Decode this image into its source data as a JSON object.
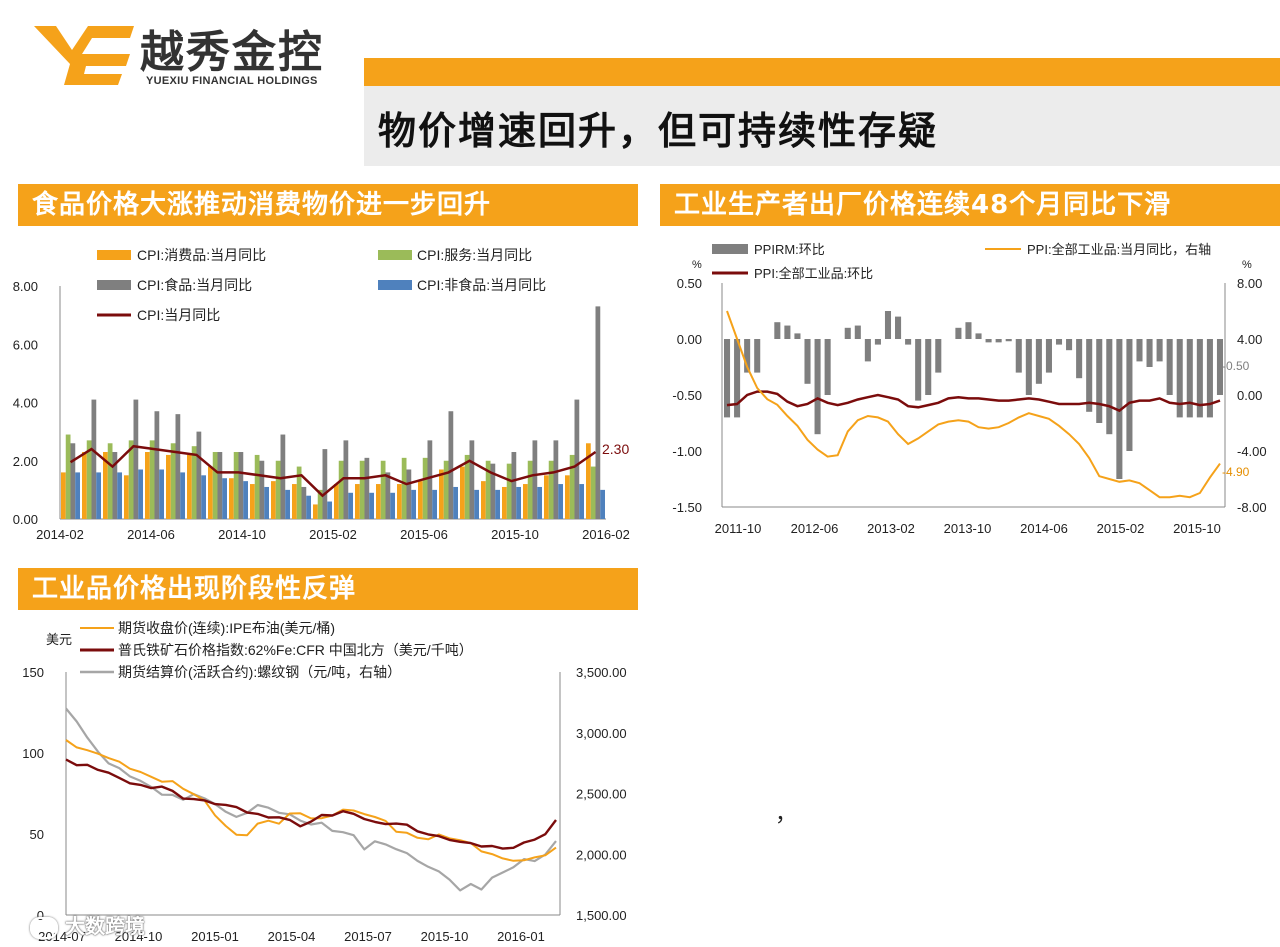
{
  "logo": {
    "cn": "越秀金控",
    "en": "YUEXIU FINANCIAL HOLDINGS"
  },
  "main_title": "物价增速回升，但可持续性存疑",
  "sections": {
    "cpi": "食品价格大涨推动消费物价进一步回升",
    "ppi": "工业生产者出厂价格连续48个月同比下滑",
    "commodity": "工业品价格出现阶段性反弹"
  },
  "stray_mark": "，",
  "watermark": "大数跨境",
  "colors": {
    "orange": "#f5a21a",
    "green": "#9bbb59",
    "gray": "#7f7f7f",
    "blue": "#4f81bd",
    "darkred": "#7b0c0c",
    "lightgray": "#a6a6a6"
  },
  "chart_data": [
    {
      "id": "cpi",
      "type": "bar",
      "legend": [
        "CPI:消费品:当月同比",
        "CPI:服务:当月同比",
        "CPI:食品:当月同比",
        "CPI:非食品:当月同比",
        "CPI:当月同比"
      ],
      "x_ticks": [
        "2014-02",
        "2014-06",
        "2014-10",
        "2015-02",
        "2015-06",
        "2015-10",
        "2016-02"
      ],
      "y_ticks": [
        "8.00",
        "6.00",
        "4.00",
        "2.00",
        "0.00"
      ],
      "ylim": [
        0,
        8
      ],
      "end_label": "2.30",
      "series": [
        {
          "name": "CPI:消费品:当月同比",
          "values": [
            1.6,
            2.3,
            2.3,
            1.5,
            2.3,
            2.2,
            2.2,
            1.8,
            1.4,
            1.2,
            1.3,
            1.2,
            0.5,
            1.2,
            1.2,
            1.2,
            1.2,
            1.3,
            1.7,
            1.8,
            1.3,
            1.1,
            1.2,
            1.5,
            1.5,
            2.6
          ]
        },
        {
          "name": "CPI:服务:当月同比",
          "values": [
            2.9,
            2.7,
            2.6,
            2.7,
            2.7,
            2.6,
            2.5,
            2.3,
            2.3,
            2.2,
            2.0,
            1.8,
            1.0,
            2.0,
            2.0,
            2.0,
            2.1,
            2.1,
            2.0,
            2.2,
            2.0,
            1.9,
            2.0,
            2.0,
            2.2,
            1.8
          ]
        },
        {
          "name": "CPI:食品:当月同比",
          "values": [
            2.6,
            4.1,
            2.3,
            4.1,
            3.7,
            3.6,
            3.0,
            2.3,
            2.3,
            2.0,
            2.9,
            1.1,
            2.4,
            2.7,
            2.1,
            1.6,
            1.7,
            2.7,
            3.7,
            2.7,
            1.9,
            2.3,
            2.7,
            2.7,
            4.1,
            7.3
          ]
        },
        {
          "name": "CPI:非食品:当月同比",
          "values": [
            1.6,
            1.6,
            1.6,
            1.7,
            1.7,
            1.6,
            1.5,
            1.4,
            1.3,
            1.1,
            1.0,
            0.8,
            0.6,
            0.9,
            0.9,
            0.9,
            1.0,
            1.0,
            1.1,
            1.0,
            1.0,
            1.1,
            1.1,
            1.2,
            1.2,
            1.0
          ]
        },
        {
          "name": "CPI:当月同比",
          "values": [
            1.95,
            2.4,
            1.8,
            2.5,
            2.4,
            2.3,
            2.2,
            1.6,
            1.6,
            1.5,
            1.4,
            1.5,
            0.8,
            1.4,
            1.4,
            1.5,
            1.2,
            1.4,
            1.6,
            2.0,
            1.6,
            1.3,
            1.5,
            1.6,
            1.8,
            2.3
          ]
        }
      ]
    },
    {
      "id": "ppi",
      "type": "bar+line",
      "legend": [
        "PPIRM:环比",
        "PPI:全部工业品:环比",
        "PPI:全部工业品:当月同比，右轴"
      ],
      "unit_left": "%",
      "unit_right": "%",
      "x_ticks": [
        "2011-10",
        "2012-06",
        "2013-02",
        "2013-10",
        "2014-06",
        "2015-02",
        "2015-10"
      ],
      "y_left_ticks": [
        "0.50",
        "0.00",
        "-0.50",
        "-1.00",
        "-1.50"
      ],
      "y_right_ticks": [
        "8.00",
        "4.00",
        "0.00",
        "-4.00",
        "-8.00"
      ],
      "ylim_left": [
        -1.5,
        0.5
      ],
      "ylim_right": [
        -8,
        8
      ],
      "annotations": [
        "-0.50",
        "-4.90"
      ],
      "series": [
        {
          "name": "PPIRM:环比",
          "values": [
            -0.7,
            -0.7,
            -0.3,
            -0.3,
            0.0,
            0.15,
            0.12,
            0.05,
            -0.4,
            -0.85,
            -0.5,
            0.0,
            0.1,
            0.12,
            -0.2,
            -0.05,
            0.25,
            0.2,
            -0.05,
            -0.55,
            -0.5,
            -0.3,
            0.0,
            0.1,
            0.15,
            0.05,
            -0.03,
            -0.03,
            -0.02,
            -0.3,
            -0.5,
            -0.4,
            -0.3,
            -0.05,
            -0.1,
            -0.35,
            -0.65,
            -0.75,
            -0.85,
            -1.25,
            -1.0,
            -0.2,
            -0.25,
            -0.2,
            -0.5,
            -0.7,
            -0.7,
            -0.7,
            -0.7,
            -0.5
          ]
        },
        {
          "name": "PPI:全部工业品:环比",
          "values": [
            -0.59,
            -0.58,
            -0.5,
            -0.47,
            -0.47,
            -0.49,
            -0.56,
            -0.6,
            -0.58,
            -0.53,
            -0.57,
            -0.59,
            -0.57,
            -0.54,
            -0.52,
            -0.5,
            -0.52,
            -0.54,
            -0.6,
            -0.61,
            -0.59,
            -0.57,
            -0.53,
            -0.52,
            -0.53,
            -0.53,
            -0.54,
            -0.55,
            -0.55,
            -0.54,
            -0.53,
            -0.54,
            -0.56,
            -0.58,
            -0.58,
            -0.58,
            -0.57,
            -0.58,
            -0.6,
            -0.64,
            -0.57,
            -0.55,
            -0.55,
            -0.53,
            -0.57,
            -0.58,
            -0.57,
            -0.59,
            -0.58,
            -0.55
          ]
        },
        {
          "name": "PPI:全部工业品:当月同比，右轴",
          "values": [
            6.0,
            4.0,
            2.0,
            0.5,
            -0.3,
            -0.7,
            -1.5,
            -2.2,
            -3.2,
            -3.9,
            -4.4,
            -4.3,
            -2.6,
            -1.8,
            -1.5,
            -1.6,
            -1.9,
            -2.8,
            -3.5,
            -3.1,
            -2.6,
            -2.1,
            -1.9,
            -1.8,
            -1.9,
            -2.3,
            -2.4,
            -2.3,
            -2.0,
            -1.6,
            -1.3,
            -1.5,
            -1.7,
            -2.2,
            -2.8,
            -3.5,
            -4.5,
            -5.8,
            -6.0,
            -6.2,
            -6.1,
            -6.3,
            -6.8,
            -7.3,
            -7.3,
            -7.2,
            -7.3,
            -7.0,
            -5.9,
            -4.9
          ]
        }
      ]
    },
    {
      "id": "commodity",
      "type": "line",
      "legend": [
        "期货收盘价(连续):IPE布油(美元/桶)",
        "普氏铁矿石价格指数:62%Fe:CFR 中国北方（美元/千吨）",
        "期货结算价(活跃合约):螺纹钢（元/吨，右轴）"
      ],
      "unit_left": "美元",
      "x_ticks": [
        "2014-07",
        "2014-10",
        "2015-01",
        "2015-04",
        "2015-07",
        "2015-10",
        "2016-01"
      ],
      "y_left_ticks": [
        "150",
        "100",
        "50",
        "0"
      ],
      "y_right_ticks": [
        "3,500.00",
        "3,000.00",
        "2,500.00",
        "2,000.00",
        "1,500.00"
      ],
      "ylim_left": [
        0,
        150
      ],
      "ylim_right": [
        1500,
        3500
      ],
      "series": [
        {
          "name": "期货收盘价(连续):IPE布油(美元/桶)",
          "values": [
            108,
            104,
            101,
            100,
            97,
            94,
            91,
            88,
            85,
            83,
            82,
            78,
            75,
            70,
            62,
            55,
            49,
            50,
            56,
            58,
            57,
            62,
            63,
            60,
            59,
            62,
            65,
            64,
            63,
            60,
            58,
            52,
            50,
            48,
            47,
            49,
            48,
            46,
            44,
            40,
            37,
            35,
            34,
            33,
            36,
            37,
            41
          ]
        },
        {
          "name": "普氏铁矿石价格指数:62%Fe:CFR 中国北方（美元/千吨）",
          "values": [
            96,
            93,
            92,
            90,
            88,
            84,
            82,
            80,
            78,
            80,
            76,
            72,
            72,
            70,
            69,
            68,
            66,
            64,
            62,
            60,
            61,
            58,
            55,
            58,
            61,
            62,
            64,
            62,
            60,
            57,
            56,
            57,
            55,
            52,
            50,
            48,
            47,
            45,
            44,
            43,
            42,
            41,
            42,
            44,
            47,
            50,
            58
          ]
        },
        {
          "name": "期货结算价(活跃合约):螺纹钢（元/吨，右轴）",
          "values": [
            3200,
            3100,
            2950,
            2850,
            2750,
            2700,
            2650,
            2600,
            2550,
            2500,
            2480,
            2450,
            2500,
            2450,
            2420,
            2350,
            2300,
            2350,
            2400,
            2380,
            2350,
            2320,
            2280,
            2250,
            2250,
            2200,
            2180,
            2150,
            2050,
            2100,
            2080,
            2050,
            2000,
            1950,
            1900,
            1850,
            1800,
            1700,
            1750,
            1720,
            1800,
            1850,
            1900,
            1950,
            1950,
            2000,
            2100
          ]
        }
      ]
    }
  ]
}
